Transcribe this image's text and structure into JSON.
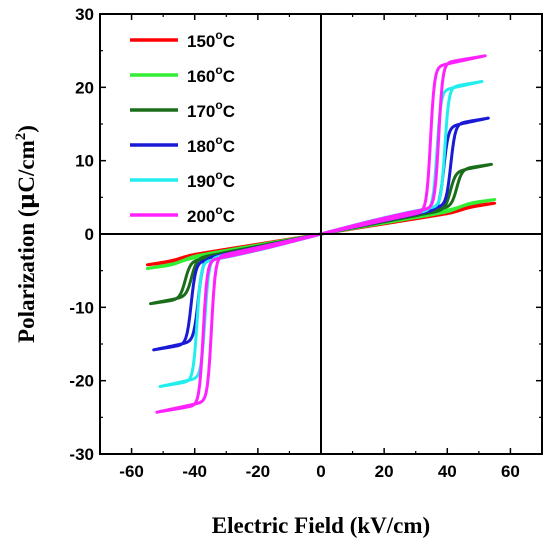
{
  "chart_data": {
    "type": "line",
    "title": "",
    "xlabel": "Electric Field (kV/cm)",
    "ylabel_parts": [
      "Polarization (",
      "μ",
      "C/cm",
      "2",
      ")"
    ],
    "xlim": [
      -70,
      70
    ],
    "ylim": [
      -30,
      30
    ],
    "xticks": [
      -60,
      -40,
      -20,
      0,
      20,
      40,
      60
    ],
    "yticks": [
      -30,
      -20,
      -10,
      0,
      10,
      20,
      30
    ],
    "grid": false,
    "legend_position": "top-left",
    "series": [
      {
        "name": "150",
        "unit": "oC",
        "unit_base": "C",
        "color": "#ff0000",
        "emax": 55,
        "pmax": 4.2,
        "ec": 45,
        "ps": 0.4,
        "width": 1.5,
        "sharp": 0.7
      },
      {
        "name": "160",
        "unit": "oC",
        "unit_base": "C",
        "color": "#33ee33",
        "emax": 55,
        "pmax": 4.7,
        "ec": 44,
        "ps": 0.6,
        "width": 1.5,
        "sharp": 0.7
      },
      {
        "name": "170",
        "unit": "oC",
        "unit_base": "C",
        "color": "#1a6e1a",
        "emax": 54,
        "pmax": 9.5,
        "ec": 42,
        "ps": 5.0,
        "width": 2.0,
        "sharp": 1.2
      },
      {
        "name": "180",
        "unit": "oC",
        "unit_base": "C",
        "color": "#1a1ad6",
        "emax": 53,
        "pmax": 15.8,
        "ec": 40,
        "ps": 11.0,
        "width": 2.2,
        "sharp": 1.4
      },
      {
        "name": "190",
        "unit": "oC",
        "unit_base": "C",
        "color": "#22eeee",
        "emax": 51,
        "pmax": 20.8,
        "ec": 38,
        "ps": 16.0,
        "width": 2.5,
        "sharp": 1.6
      },
      {
        "name": "200",
        "unit": "oC",
        "unit_base": "C",
        "color": "#ff22ff",
        "emax": 52,
        "pmax": 24.3,
        "ec": 36,
        "ps": 19.5,
        "width": 2.6,
        "sharp": 1.6
      }
    ]
  }
}
